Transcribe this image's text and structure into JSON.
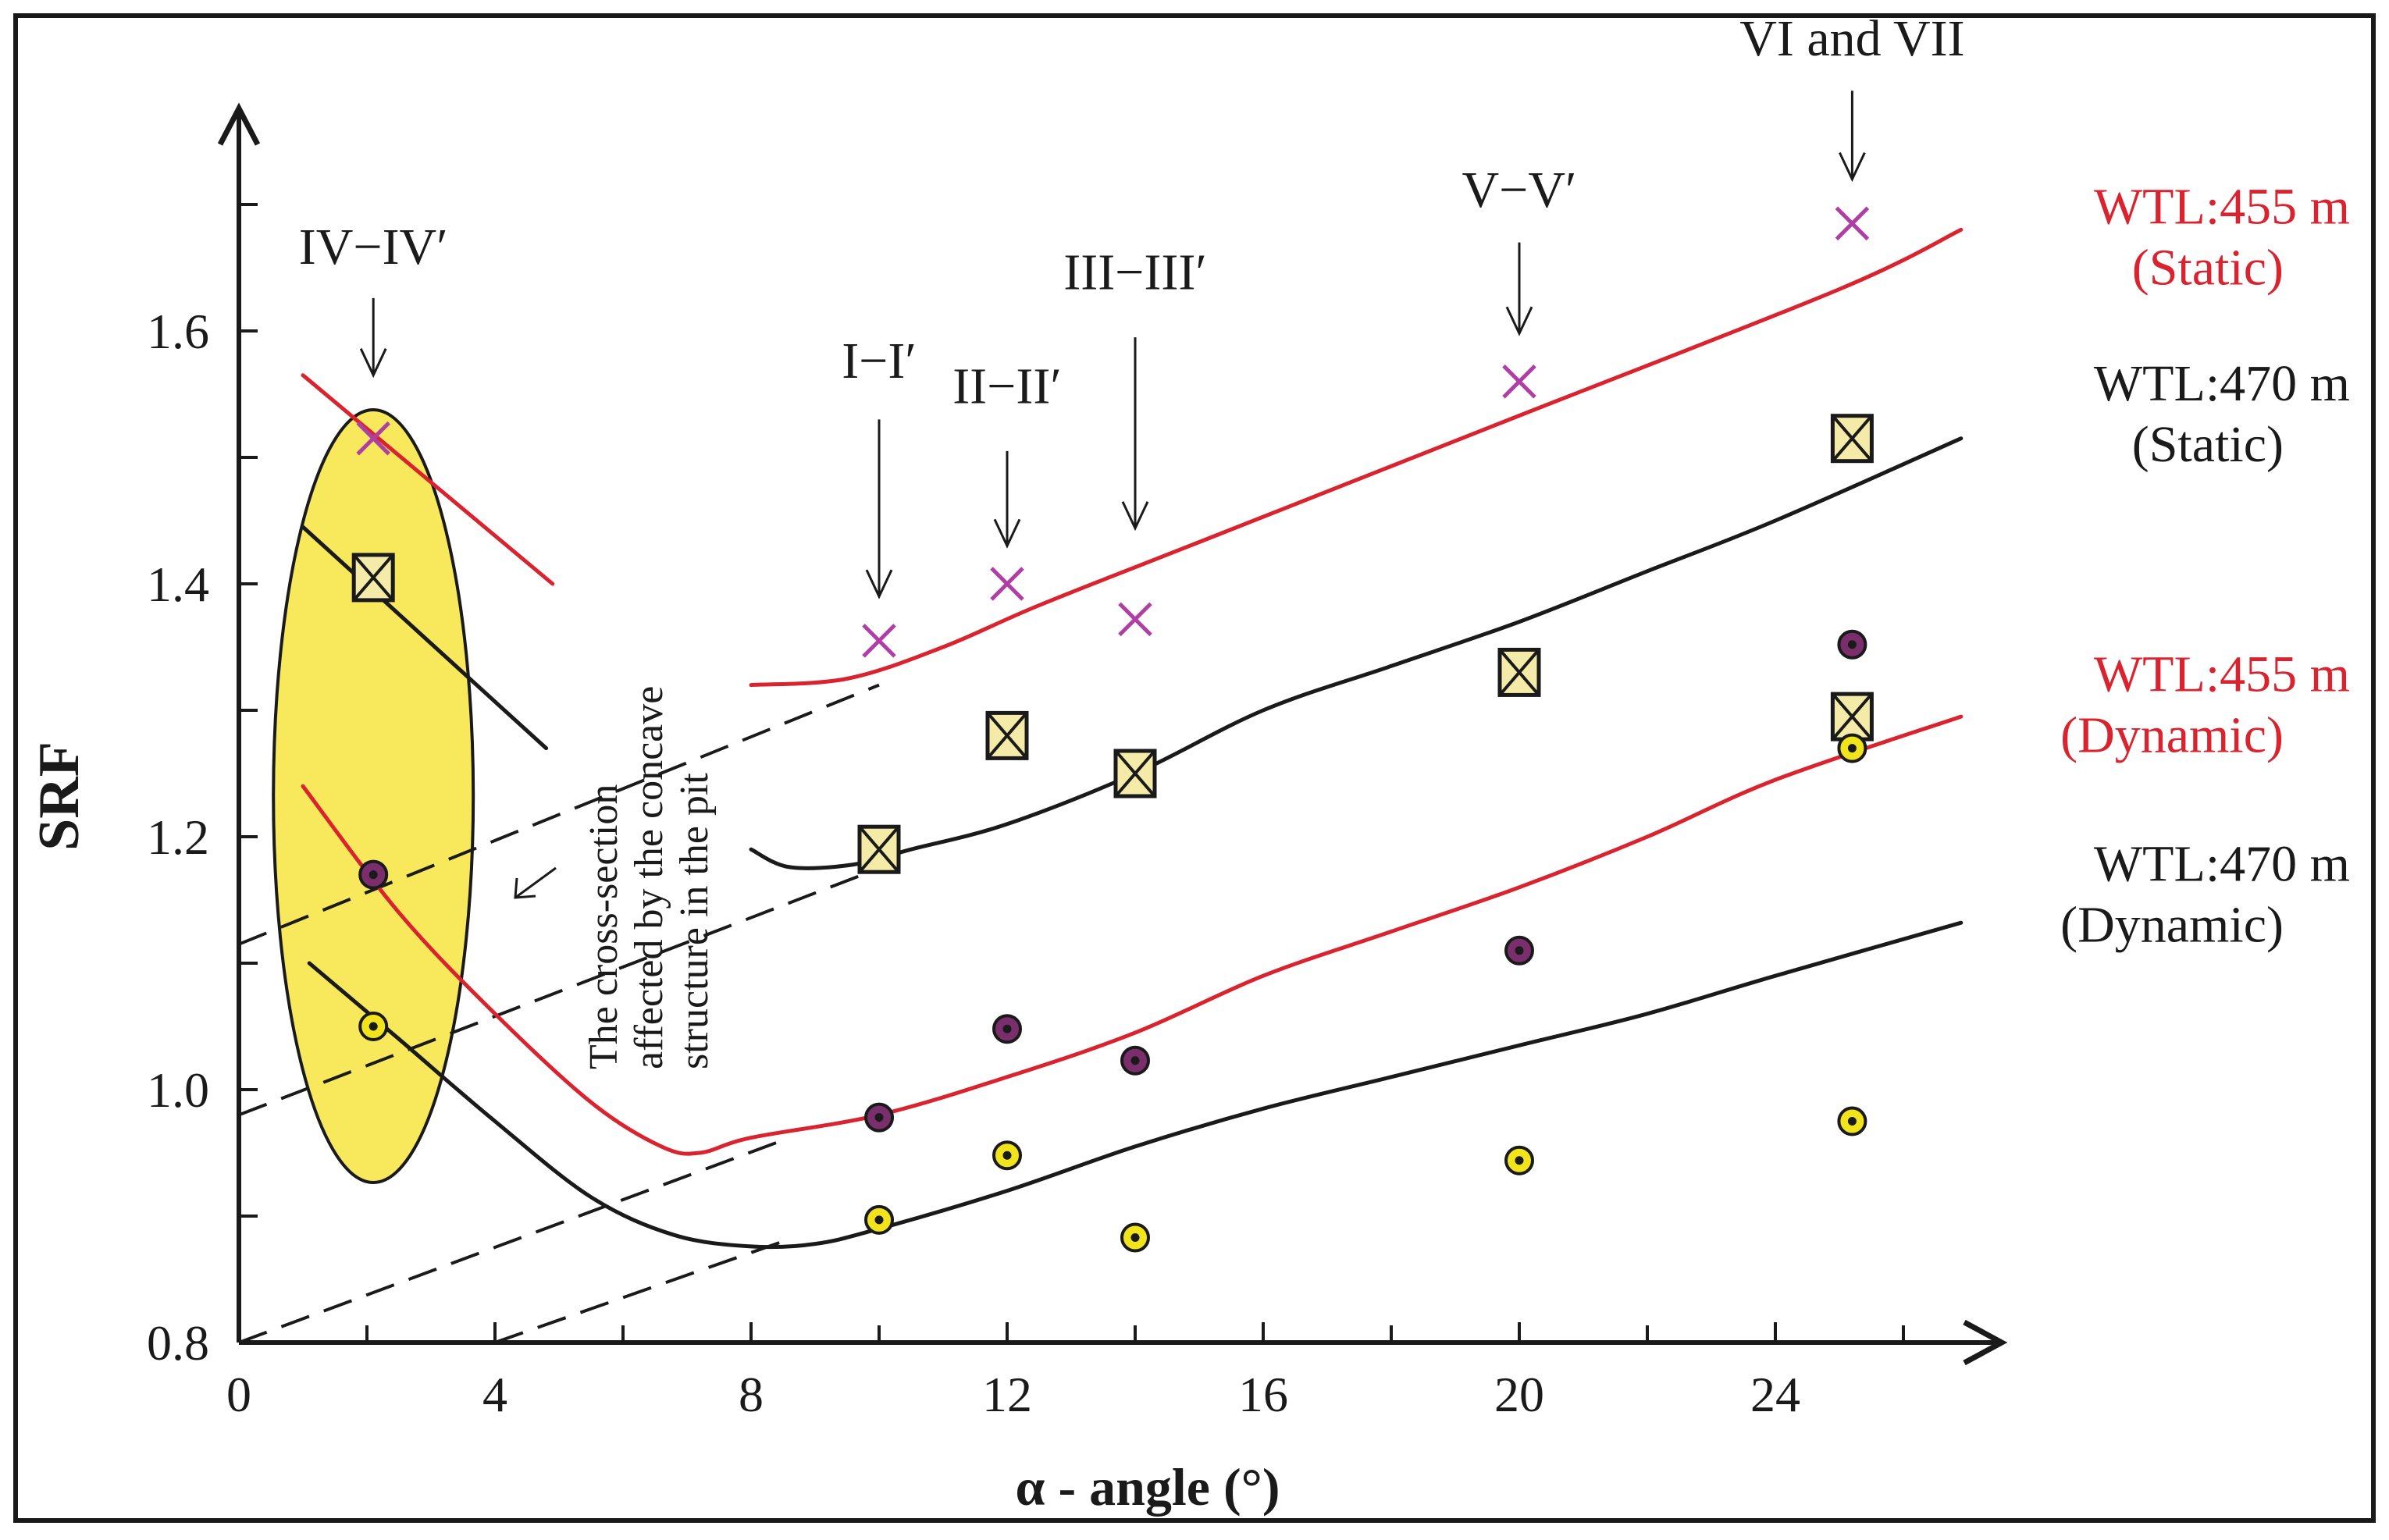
{
  "chart_data": {
    "type": "scatter",
    "xlabel": "α - angle (°)",
    "ylabel": "SRF",
    "xlim": [
      0,
      27
    ],
    "ylim": [
      0.8,
      1.75
    ],
    "x_ticks": [
      0,
      4,
      8,
      12,
      16,
      20,
      24
    ],
    "y_ticks": [
      0.8,
      1.0,
      1.2,
      1.4,
      1.6
    ],
    "grid": false,
    "colors": {
      "red": "#d9232e",
      "black": "#1a1a1a",
      "purple_x": "#b03fa5",
      "box_fill": "#f5eba8",
      "ellipse_fill": "#f7e85c",
      "dot_purple": "#7a2e6b",
      "dot_yellow": "#f2e41a"
    },
    "series": [
      {
        "name": "WTL:455 m (Static)",
        "marker": "x",
        "color": "red",
        "points": [
          [
            2.1,
            1.515
          ],
          [
            10,
            1.355
          ],
          [
            12,
            1.4
          ],
          [
            14,
            1.372
          ],
          [
            20,
            1.56
          ],
          [
            25.2,
            1.685
          ]
        ],
        "curves": [
          [
            [
              1,
              1.565
            ],
            [
              4.9,
              1.4
            ]
          ],
          [
            [
              8,
              1.32
            ],
            [
              9.5,
              1.325
            ],
            [
              11,
              1.35
            ],
            [
              12.5,
              1.383
            ],
            [
              15,
              1.433
            ],
            [
              20,
              1.533
            ],
            [
              25,
              1.633
            ],
            [
              26.9,
              1.68
            ]
          ]
        ]
      },
      {
        "name": "WTL:470 m (Static)",
        "marker": "boxed-x",
        "color": "black",
        "points": [
          [
            2.1,
            1.405
          ],
          [
            10,
            1.19
          ],
          [
            12,
            1.28
          ],
          [
            14,
            1.25
          ],
          [
            20,
            1.33
          ],
          [
            25.2,
            1.515
          ],
          [
            25.2,
            1.295
          ]
        ],
        "curves": [
          [
            [
              1,
              1.445
            ],
            [
              4.8,
              1.27
            ]
          ],
          [
            [
              8,
              1.19
            ],
            [
              8.6,
              1.176
            ],
            [
              9.6,
              1.178
            ],
            [
              10.5,
              1.19
            ],
            [
              12,
              1.21
            ],
            [
              14,
              1.25
            ],
            [
              16,
              1.3
            ],
            [
              18,
              1.335
            ],
            [
              20,
              1.37
            ],
            [
              22,
              1.41
            ],
            [
              24,
              1.45
            ],
            [
              26.9,
              1.515
            ]
          ]
        ]
      },
      {
        "name": "WTL:455 m (Dynamic)",
        "marker": "dot-purple",
        "color": "red",
        "points": [
          [
            2.1,
            1.17
          ],
          [
            10,
            0.978
          ],
          [
            12,
            1.048
          ],
          [
            14,
            1.023
          ],
          [
            20,
            1.11
          ],
          [
            25.2,
            1.352
          ]
        ],
        "curves": [
          [
            [
              1,
              1.24
            ],
            [
              2.5,
              1.14
            ],
            [
              4,
              1.06
            ],
            [
              5.5,
              0.99
            ],
            [
              6.6,
              0.955
            ],
            [
              7.2,
              0.95
            ],
            [
              8,
              0.962
            ],
            [
              10,
              0.98
            ],
            [
              12,
              1.01
            ],
            [
              14,
              1.045
            ],
            [
              16,
              1.09
            ],
            [
              18,
              1.125
            ],
            [
              20,
              1.16
            ],
            [
              22,
              1.2
            ],
            [
              24,
              1.245
            ],
            [
              26.9,
              1.295
            ]
          ]
        ]
      },
      {
        "name": "WTL:470 m (Dynamic)",
        "marker": "dot-yellow",
        "color": "black",
        "points": [
          [
            2.1,
            1.05
          ],
          [
            10,
            0.897
          ],
          [
            12,
            0.948
          ],
          [
            14,
            0.883
          ],
          [
            20,
            0.944
          ],
          [
            25.2,
            0.975
          ],
          [
            25.2,
            1.27
          ]
        ],
        "curves": [
          [
            [
              1.1,
              1.1
            ],
            [
              2.5,
              1.04
            ],
            [
              4,
              0.975
            ],
            [
              5.5,
              0.915
            ],
            [
              6.8,
              0.885
            ],
            [
              8,
              0.876
            ],
            [
              9,
              0.878
            ],
            [
              10,
              0.89
            ],
            [
              12,
              0.92
            ],
            [
              14,
              0.955
            ],
            [
              16,
              0.985
            ],
            [
              18,
              1.01
            ],
            [
              20,
              1.035
            ],
            [
              22,
              1.06
            ],
            [
              24,
              1.09
            ],
            [
              26.9,
              1.132
            ]
          ]
        ]
      }
    ],
    "dashed_lines": [
      [
        [
          0,
          1.115
        ],
        [
          10,
          1.32
        ]
      ],
      [
        [
          0,
          0.98
        ],
        [
          10,
          1.175
        ]
      ],
      [
        [
          0,
          0.8
        ],
        [
          8.5,
          0.96
        ]
      ],
      [
        [
          4,
          0.8
        ],
        [
          8.5,
          0.88
        ]
      ]
    ],
    "section_labels": [
      {
        "text": "IV−IV′",
        "x": 2.1,
        "label_y": 1.653,
        "arrow_from": 1.626,
        "arrow_to": 1.565
      },
      {
        "text": "I−I′",
        "x": 10,
        "label_y": 1.563,
        "arrow_from": 1.53,
        "arrow_to": 1.39
      },
      {
        "text": "II−II′",
        "x": 12,
        "label_y": 1.543,
        "arrow_from": 1.505,
        "arrow_to": 1.43
      },
      {
        "text": "III−III′",
        "x": 14,
        "label_y": 1.633,
        "arrow_from": 1.595,
        "arrow_to": 1.444
      },
      {
        "text": "V−V′",
        "x": 20,
        "label_y": 1.698,
        "arrow_from": 1.67,
        "arrow_to": 1.598
      },
      {
        "text": "VI and VII",
        "x": 25.2,
        "label_y": 1.818,
        "arrow_from": 1.79,
        "arrow_to": 1.72
      }
    ],
    "annotation_lines": [
      "The cross-section",
      "affected by the concave",
      "structure in the pit"
    ],
    "legend_entries": [
      {
        "line1": "WTL:455 m",
        "line2": "(Static)",
        "color": "red",
        "y": 1.685
      },
      {
        "line1": "WTL:470 m",
        "line2": "(Static)",
        "color": "black",
        "y": 1.545
      },
      {
        "line1": "WTL:455 m",
        "line2": "(Dynamic)",
        "color": "red",
        "y": 1.315
      },
      {
        "line1": "WTL:470 m",
        "line2": "(Dynamic)",
        "color": "black",
        "y": 1.165
      }
    ]
  }
}
